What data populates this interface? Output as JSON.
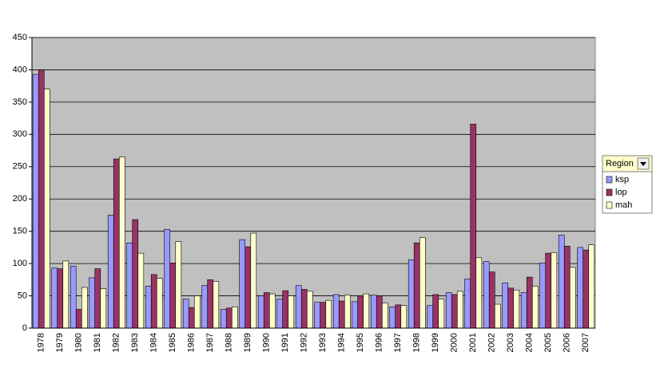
{
  "chart_data": {
    "type": "bar",
    "categories": [
      "1978",
      "1979",
      "1980",
      "1981",
      "1982",
      "1983",
      "1984",
      "1985",
      "1986",
      "1987",
      "1988",
      "1989",
      "1990",
      "1991",
      "1992",
      "1993",
      "1994",
      "1995",
      "1996",
      "1997",
      "1998",
      "1999",
      "2000",
      "2001",
      "2002",
      "2003",
      "2004",
      "2005",
      "2006",
      "2007"
    ],
    "series": [
      {
        "name": "ksp",
        "color": "#9999ff",
        "values": [
          393,
          93,
          96,
          78,
          175,
          132,
          65,
          153,
          45,
          66,
          29,
          137,
          50,
          45,
          66,
          40,
          52,
          41,
          51,
          33,
          106,
          35,
          55,
          76,
          103,
          70,
          55,
          101,
          144,
          125
        ]
      },
      {
        "name": "lop",
        "color": "#993366",
        "values": [
          400,
          92,
          29,
          92,
          262,
          168,
          83,
          101,
          32,
          75,
          31,
          126,
          55,
          58,
          60,
          40,
          42,
          50,
          50,
          36,
          132,
          52,
          52,
          316,
          87,
          62,
          79,
          116,
          127,
          121
        ]
      },
      {
        "name": "mah",
        "color": "#ffffcc",
        "values": [
          370,
          104,
          63,
          61,
          265,
          116,
          77,
          134,
          50,
          72,
          33,
          147,
          53,
          50,
          57,
          43,
          51,
          53,
          39,
          35,
          140,
          45,
          57,
          109,
          37,
          59,
          65,
          117,
          94,
          129
        ]
      }
    ],
    "legend_title": "Region",
    "ylim": [
      0,
      450
    ],
    "yticks": [
      0,
      50,
      100,
      150,
      200,
      250,
      300,
      350,
      400,
      450
    ],
    "grid": true,
    "legend": "right"
  }
}
